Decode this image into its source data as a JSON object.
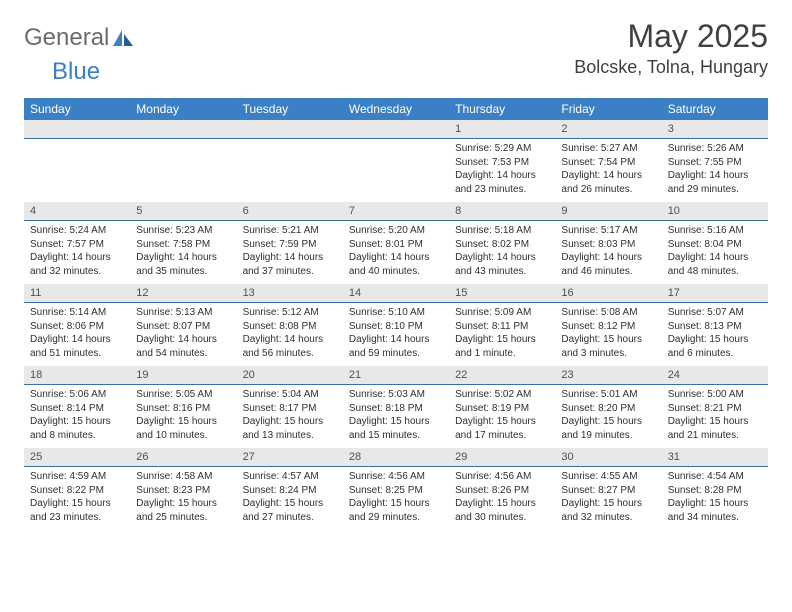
{
  "logo": {
    "part1": "General",
    "part2": "Blue"
  },
  "title": "May 2025",
  "location": "Bolcske, Tolna, Hungary",
  "colors": {
    "header_bg": "#3b7fc4",
    "header_fg": "#ffffff",
    "numrow_bg": "#e8e8e8",
    "numrow_border": "#3b6fa0",
    "text": "#303030",
    "logo_gray": "#6b6b6b",
    "logo_blue": "#3b7fc4",
    "page_bg": "#ffffff"
  },
  "dow": [
    "Sunday",
    "Monday",
    "Tuesday",
    "Wednesday",
    "Thursday",
    "Friday",
    "Saturday"
  ],
  "weeks": [
    [
      {
        "n": "",
        "lines": []
      },
      {
        "n": "",
        "lines": []
      },
      {
        "n": "",
        "lines": []
      },
      {
        "n": "",
        "lines": []
      },
      {
        "n": "1",
        "lines": [
          "Sunrise: 5:29 AM",
          "Sunset: 7:53 PM",
          "Daylight: 14 hours",
          "and 23 minutes."
        ]
      },
      {
        "n": "2",
        "lines": [
          "Sunrise: 5:27 AM",
          "Sunset: 7:54 PM",
          "Daylight: 14 hours",
          "and 26 minutes."
        ]
      },
      {
        "n": "3",
        "lines": [
          "Sunrise: 5:26 AM",
          "Sunset: 7:55 PM",
          "Daylight: 14 hours",
          "and 29 minutes."
        ]
      }
    ],
    [
      {
        "n": "4",
        "lines": [
          "Sunrise: 5:24 AM",
          "Sunset: 7:57 PM",
          "Daylight: 14 hours",
          "and 32 minutes."
        ]
      },
      {
        "n": "5",
        "lines": [
          "Sunrise: 5:23 AM",
          "Sunset: 7:58 PM",
          "Daylight: 14 hours",
          "and 35 minutes."
        ]
      },
      {
        "n": "6",
        "lines": [
          "Sunrise: 5:21 AM",
          "Sunset: 7:59 PM",
          "Daylight: 14 hours",
          "and 37 minutes."
        ]
      },
      {
        "n": "7",
        "lines": [
          "Sunrise: 5:20 AM",
          "Sunset: 8:01 PM",
          "Daylight: 14 hours",
          "and 40 minutes."
        ]
      },
      {
        "n": "8",
        "lines": [
          "Sunrise: 5:18 AM",
          "Sunset: 8:02 PM",
          "Daylight: 14 hours",
          "and 43 minutes."
        ]
      },
      {
        "n": "9",
        "lines": [
          "Sunrise: 5:17 AM",
          "Sunset: 8:03 PM",
          "Daylight: 14 hours",
          "and 46 minutes."
        ]
      },
      {
        "n": "10",
        "lines": [
          "Sunrise: 5:16 AM",
          "Sunset: 8:04 PM",
          "Daylight: 14 hours",
          "and 48 minutes."
        ]
      }
    ],
    [
      {
        "n": "11",
        "lines": [
          "Sunrise: 5:14 AM",
          "Sunset: 8:06 PM",
          "Daylight: 14 hours",
          "and 51 minutes."
        ]
      },
      {
        "n": "12",
        "lines": [
          "Sunrise: 5:13 AM",
          "Sunset: 8:07 PM",
          "Daylight: 14 hours",
          "and 54 minutes."
        ]
      },
      {
        "n": "13",
        "lines": [
          "Sunrise: 5:12 AM",
          "Sunset: 8:08 PM",
          "Daylight: 14 hours",
          "and 56 minutes."
        ]
      },
      {
        "n": "14",
        "lines": [
          "Sunrise: 5:10 AM",
          "Sunset: 8:10 PM",
          "Daylight: 14 hours",
          "and 59 minutes."
        ]
      },
      {
        "n": "15",
        "lines": [
          "Sunrise: 5:09 AM",
          "Sunset: 8:11 PM",
          "Daylight: 15 hours",
          "and 1 minute."
        ]
      },
      {
        "n": "16",
        "lines": [
          "Sunrise: 5:08 AM",
          "Sunset: 8:12 PM",
          "Daylight: 15 hours",
          "and 3 minutes."
        ]
      },
      {
        "n": "17",
        "lines": [
          "Sunrise: 5:07 AM",
          "Sunset: 8:13 PM",
          "Daylight: 15 hours",
          "and 6 minutes."
        ]
      }
    ],
    [
      {
        "n": "18",
        "lines": [
          "Sunrise: 5:06 AM",
          "Sunset: 8:14 PM",
          "Daylight: 15 hours",
          "and 8 minutes."
        ]
      },
      {
        "n": "19",
        "lines": [
          "Sunrise: 5:05 AM",
          "Sunset: 8:16 PM",
          "Daylight: 15 hours",
          "and 10 minutes."
        ]
      },
      {
        "n": "20",
        "lines": [
          "Sunrise: 5:04 AM",
          "Sunset: 8:17 PM",
          "Daylight: 15 hours",
          "and 13 minutes."
        ]
      },
      {
        "n": "21",
        "lines": [
          "Sunrise: 5:03 AM",
          "Sunset: 8:18 PM",
          "Daylight: 15 hours",
          "and 15 minutes."
        ]
      },
      {
        "n": "22",
        "lines": [
          "Sunrise: 5:02 AM",
          "Sunset: 8:19 PM",
          "Daylight: 15 hours",
          "and 17 minutes."
        ]
      },
      {
        "n": "23",
        "lines": [
          "Sunrise: 5:01 AM",
          "Sunset: 8:20 PM",
          "Daylight: 15 hours",
          "and 19 minutes."
        ]
      },
      {
        "n": "24",
        "lines": [
          "Sunrise: 5:00 AM",
          "Sunset: 8:21 PM",
          "Daylight: 15 hours",
          "and 21 minutes."
        ]
      }
    ],
    [
      {
        "n": "25",
        "lines": [
          "Sunrise: 4:59 AM",
          "Sunset: 8:22 PM",
          "Daylight: 15 hours",
          "and 23 minutes."
        ]
      },
      {
        "n": "26",
        "lines": [
          "Sunrise: 4:58 AM",
          "Sunset: 8:23 PM",
          "Daylight: 15 hours",
          "and 25 minutes."
        ]
      },
      {
        "n": "27",
        "lines": [
          "Sunrise: 4:57 AM",
          "Sunset: 8:24 PM",
          "Daylight: 15 hours",
          "and 27 minutes."
        ]
      },
      {
        "n": "28",
        "lines": [
          "Sunrise: 4:56 AM",
          "Sunset: 8:25 PM",
          "Daylight: 15 hours",
          "and 29 minutes."
        ]
      },
      {
        "n": "29",
        "lines": [
          "Sunrise: 4:56 AM",
          "Sunset: 8:26 PM",
          "Daylight: 15 hours",
          "and 30 minutes."
        ]
      },
      {
        "n": "30",
        "lines": [
          "Sunrise: 4:55 AM",
          "Sunset: 8:27 PM",
          "Daylight: 15 hours",
          "and 32 minutes."
        ]
      },
      {
        "n": "31",
        "lines": [
          "Sunrise: 4:54 AM",
          "Sunset: 8:28 PM",
          "Daylight: 15 hours",
          "and 34 minutes."
        ]
      }
    ]
  ]
}
